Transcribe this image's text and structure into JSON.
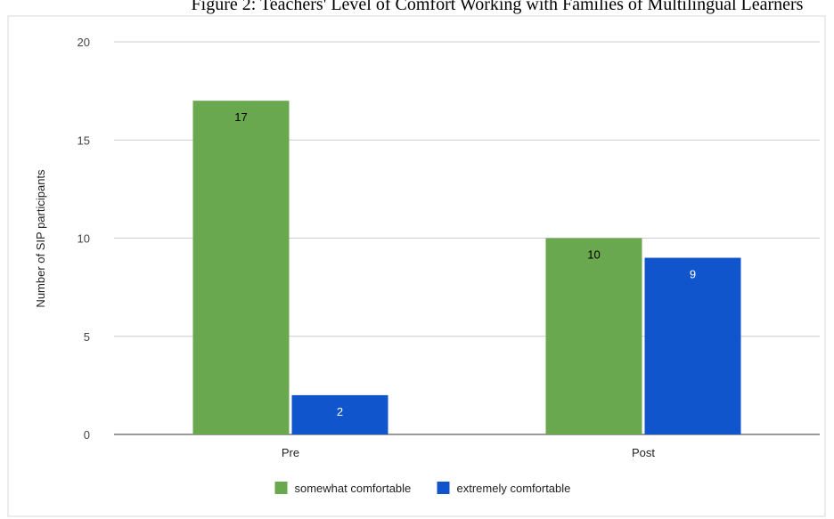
{
  "page_title": "Figure 2: Teachers' Level of Comfort Working with Families of Multilingual Learners",
  "chart_data": {
    "type": "bar",
    "title": "Figure 2: Teachers' Level of Comfort Working with Families of Multilingual Learners",
    "xlabel": "",
    "ylabel": "Number of SIP participants",
    "categories": [
      "Pre",
      "Post"
    ],
    "ylim": [
      0,
      20
    ],
    "yticks": [
      0,
      5,
      10,
      15,
      20
    ],
    "grid": true,
    "legend_position": "bottom",
    "series": [
      {
        "name": "somewhat comfortable",
        "color": "#6aa84f",
        "values": [
          17,
          10
        ],
        "label_color": "#000000"
      },
      {
        "name": "extremely comfortable",
        "color": "#1155cc",
        "values": [
          2,
          9
        ],
        "label_color": "#ffffff"
      }
    ]
  }
}
